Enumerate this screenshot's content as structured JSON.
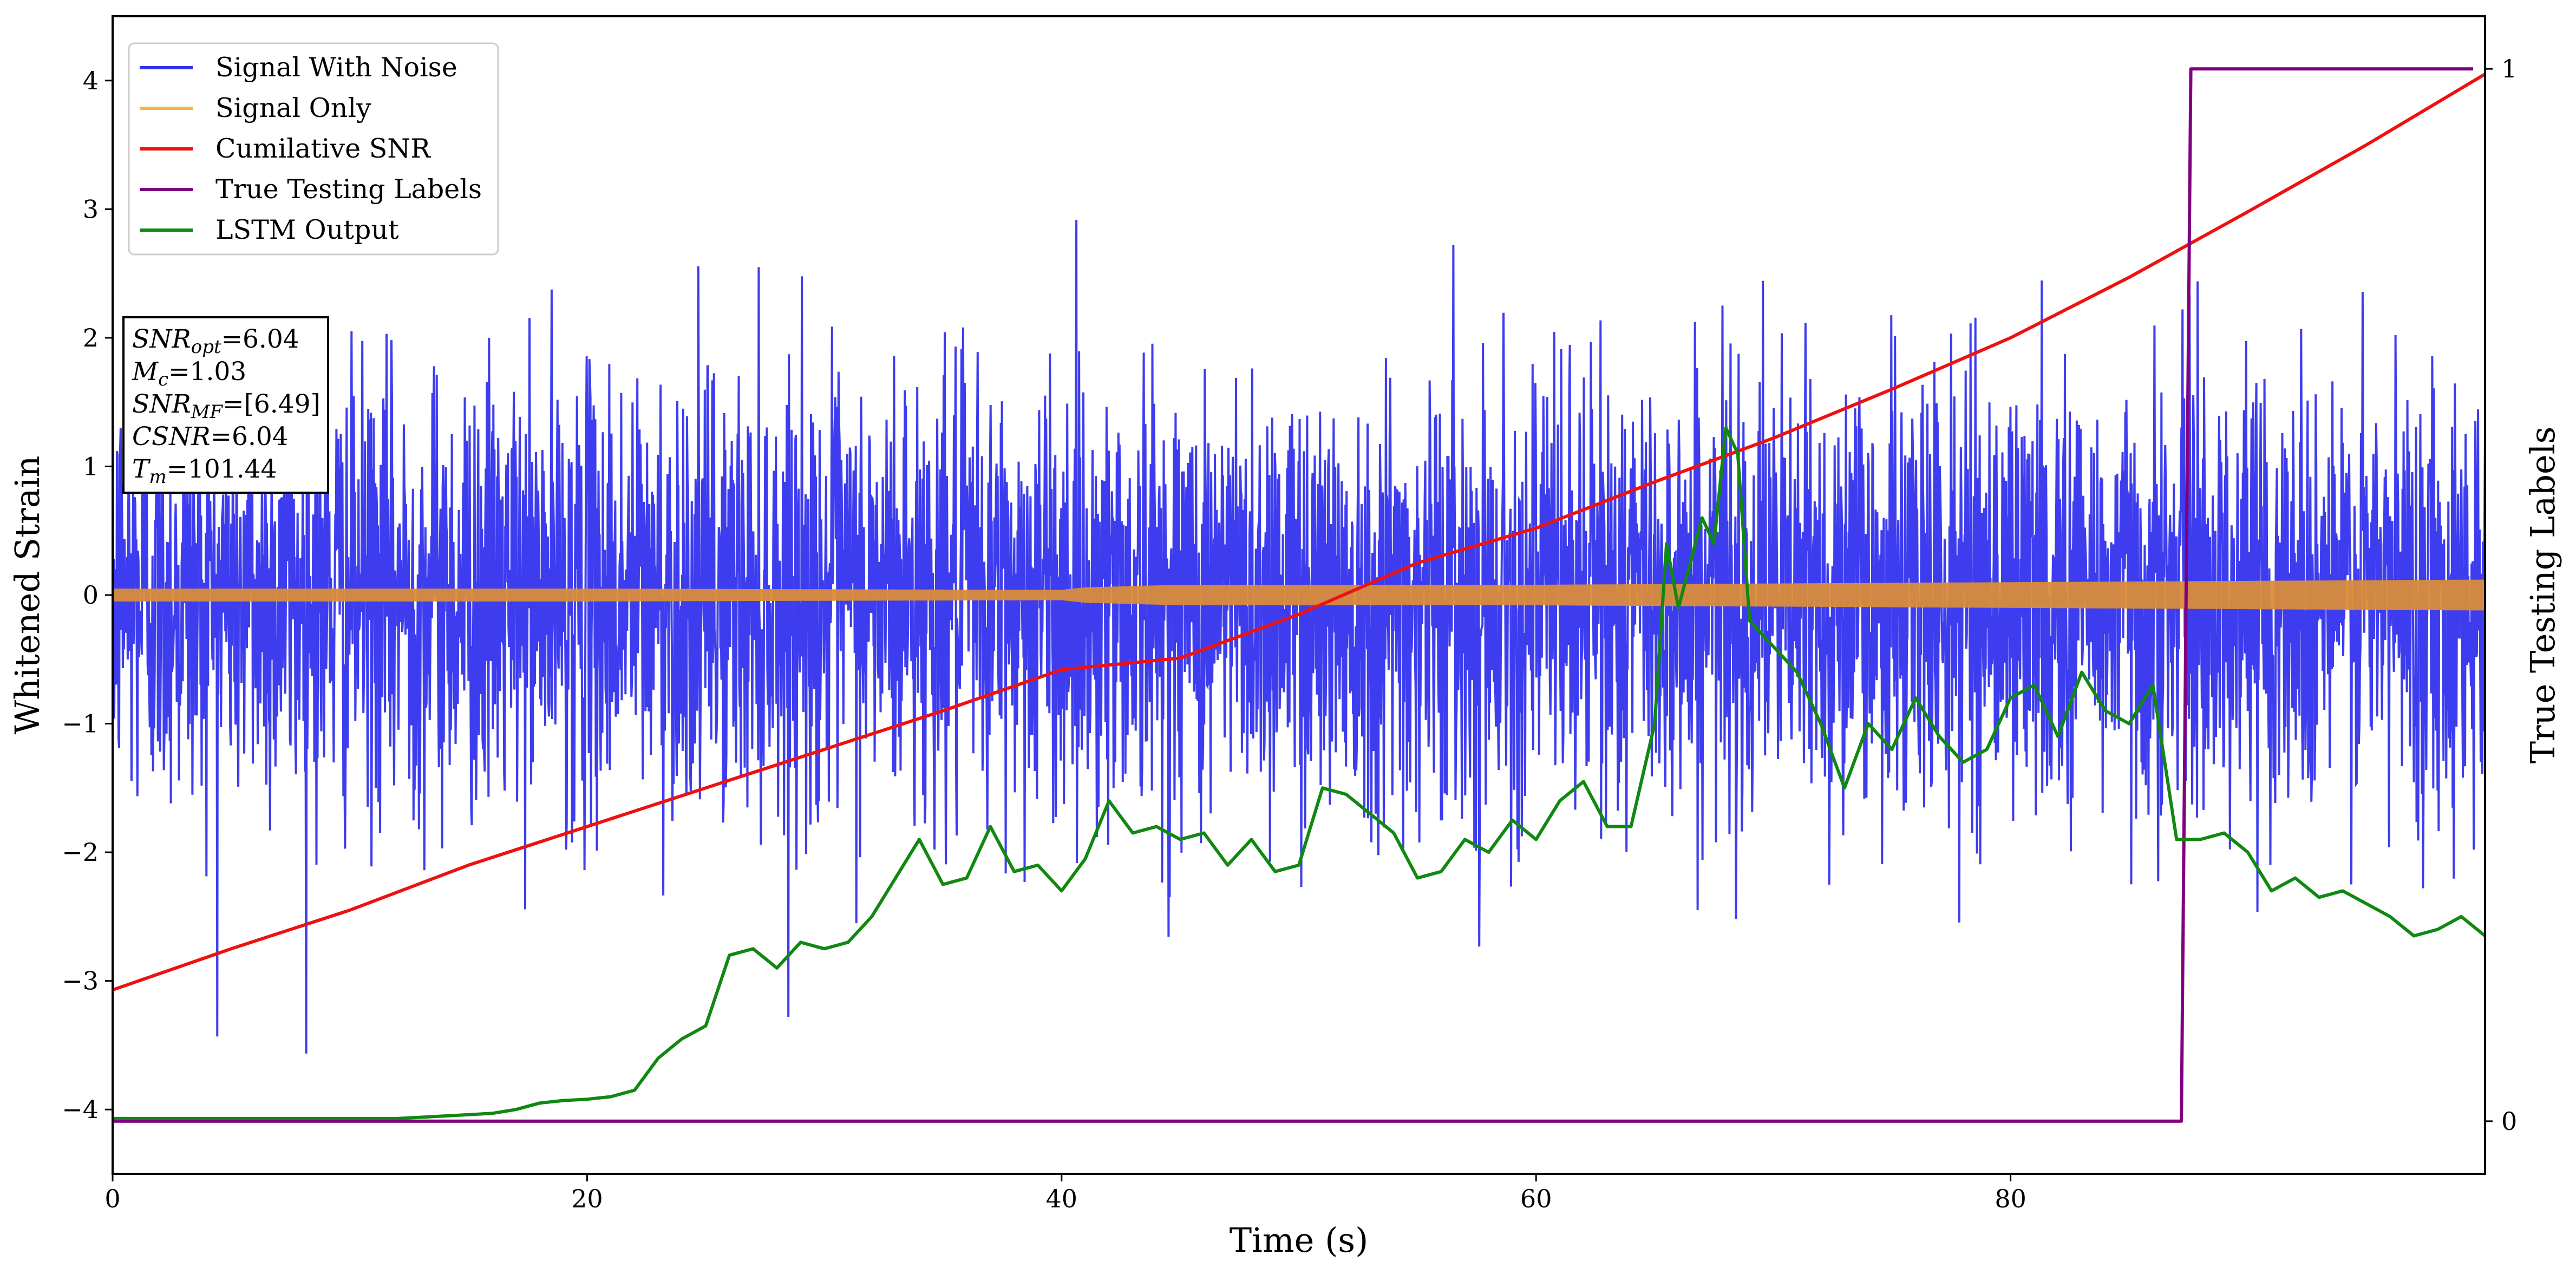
{
  "chart_data": {
    "type": "line",
    "xlabel": "Time (s)",
    "ylabel": "Whitened Strain",
    "ylabel_right": "True Testing Labels",
    "xlim": [
      0,
      100
    ],
    "ylim": [
      -4.5,
      4.5
    ],
    "ylim_right": [
      -0.05,
      1.05
    ],
    "xticks": [
      0,
      20,
      40,
      60,
      80
    ],
    "xtick_labels": [
      "0",
      "20",
      "40",
      "60",
      "80"
    ],
    "yticks": [
      -4,
      -3,
      -2,
      -1,
      0,
      1,
      2,
      3,
      4
    ],
    "ytick_labels": [
      "−4",
      "−3",
      "−2",
      "−1",
      "0",
      "1",
      "2",
      "3",
      "4"
    ],
    "yticks_right": [
      0,
      1
    ],
    "ytick_labels_right": [
      "0",
      "1"
    ],
    "legend_position": "upper-left",
    "legend": [
      {
        "name": "Signal With Noise",
        "color": "#3333ee"
      },
      {
        "name": "Signal Only",
        "color": "#f5b642"
      },
      {
        "name": "Cumilative SNR",
        "color": "#ee1111"
      },
      {
        "name": "True Testing Labels",
        "color": "#800080"
      },
      {
        "name": "LSTM Output",
        "color": "#118811"
      }
    ],
    "annotation": {
      "snr_opt": {
        "base": "SNR",
        "sub": "opt",
        "value": "=6.04"
      },
      "mc": {
        "base": "M",
        "sub": "c",
        "value": "=1.03"
      },
      "snr_mf": {
        "base": "SNR",
        "sub": "MF",
        "value": "=[6.49]"
      },
      "csnr": {
        "base": "CSNR",
        "value": "=6.04"
      },
      "tm": {
        "base": "T",
        "sub": "m",
        "value": "=101.44"
      }
    },
    "series": [
      {
        "name": "Signal With Noise",
        "axis": "left",
        "description": "noisy whitened strain, roughly zero-mean",
        "std": 0.85,
        "y_min": -4.1,
        "y_max": 3.7
      },
      {
        "name": "Signal Only",
        "axis": "left",
        "x": [
          0,
          20,
          40,
          41,
          45,
          60,
          80,
          100
        ],
        "amplitude": [
          0.05,
          0.05,
          0.04,
          0.06,
          0.08,
          0.08,
          0.1,
          0.12
        ]
      },
      {
        "name": "Cumilative SNR",
        "axis": "left",
        "x": [
          0,
          5,
          10,
          15,
          20,
          25,
          30,
          35,
          40,
          45,
          50,
          55,
          60,
          65,
          70,
          75,
          80,
          85,
          90,
          95,
          100
        ],
        "y": [
          -3.07,
          -2.75,
          -2.45,
          -2.1,
          -1.8,
          -1.5,
          -1.2,
          -0.9,
          -0.58,
          -0.49,
          -0.15,
          0.25,
          0.52,
          0.88,
          1.22,
          1.6,
          2.0,
          2.47,
          2.98,
          3.5,
          4.05
        ]
      },
      {
        "name": "True Testing Labels",
        "axis": "right",
        "x": [
          0,
          87.2,
          87.6,
          99.5
        ],
        "y": [
          0,
          0,
          1,
          1
        ]
      },
      {
        "name": "LSTM Output",
        "axis": "left",
        "x": [
          0,
          12,
          14,
          16,
          17,
          18,
          19,
          20,
          21,
          22,
          23,
          24,
          25,
          26,
          27,
          28,
          29,
          30,
          31,
          32,
          33,
          34,
          35,
          36,
          37,
          38,
          39,
          40,
          41,
          42,
          43,
          44,
          45,
          46,
          47,
          48,
          49,
          50,
          51,
          52,
          53,
          54,
          55,
          56,
          57,
          58,
          59,
          60,
          61,
          62,
          63,
          64,
          65,
          65.5,
          66,
          67,
          67.5,
          68,
          68.5,
          69,
          70,
          71,
          72,
          73,
          74,
          75,
          76,
          77,
          78,
          79,
          80,
          81,
          82,
          83,
          84,
          85,
          86,
          87,
          88,
          89,
          90,
          91,
          92,
          93,
          94,
          95,
          96,
          97,
          98,
          99,
          100
        ],
        "y": [
          -4.07,
          -4.07,
          -4.05,
          -4.03,
          -4.0,
          -3.95,
          -3.93,
          -3.92,
          -3.9,
          -3.85,
          -3.6,
          -3.45,
          -3.35,
          -2.8,
          -2.75,
          -2.9,
          -2.7,
          -2.75,
          -2.7,
          -2.5,
          -2.2,
          -1.9,
          -2.25,
          -2.2,
          -1.8,
          -2.15,
          -2.1,
          -2.3,
          -2.05,
          -1.6,
          -1.85,
          -1.8,
          -1.9,
          -1.85,
          -2.1,
          -1.9,
          -2.15,
          -2.1,
          -1.5,
          -1.55,
          -1.7,
          -1.85,
          -2.2,
          -2.15,
          -1.9,
          -2.0,
          -1.75,
          -1.9,
          -1.6,
          -1.45,
          -1.8,
          -1.8,
          -1.0,
          0.4,
          -0.1,
          0.6,
          0.4,
          1.3,
          1.1,
          -0.2,
          -0.4,
          -0.6,
          -1.0,
          -1.5,
          -1.0,
          -1.2,
          -0.8,
          -1.1,
          -1.3,
          -1.2,
          -0.8,
          -0.7,
          -1.1,
          -0.6,
          -0.9,
          -1.0,
          -0.7,
          -1.9,
          -1.9,
          -1.85,
          -2.0,
          -2.3,
          -2.2,
          -2.35,
          -2.3,
          -2.4,
          -2.5,
          -2.65,
          -2.6,
          -2.5,
          -2.65
        ]
      }
    ]
  }
}
